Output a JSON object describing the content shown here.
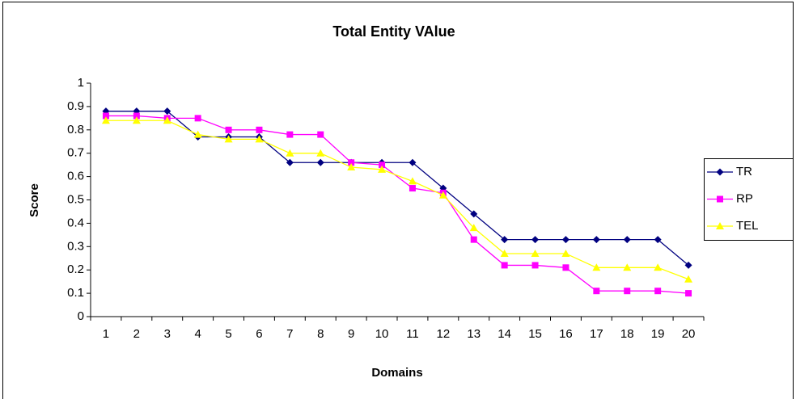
{
  "chart_data": {
    "type": "line",
    "title": "Total Entity VAlue",
    "xlabel": "Domains",
    "ylabel": "Score",
    "categories": [
      1,
      2,
      3,
      4,
      5,
      6,
      7,
      8,
      9,
      10,
      11,
      12,
      13,
      14,
      15,
      16,
      17,
      18,
      19,
      20
    ],
    "series": [
      {
        "name": "TR",
        "color": "#000080",
        "marker": "diamond",
        "values": [
          0.88,
          0.88,
          0.88,
          0.77,
          0.77,
          0.77,
          0.66,
          0.66,
          0.66,
          0.66,
          0.66,
          0.55,
          0.44,
          0.33,
          0.33,
          0.33,
          0.33,
          0.33,
          0.33,
          0.22
        ]
      },
      {
        "name": "RP",
        "color": "#ff00ff",
        "marker": "square",
        "values": [
          0.86,
          0.86,
          0.85,
          0.85,
          0.8,
          0.8,
          0.78,
          0.78,
          0.66,
          0.65,
          0.55,
          0.53,
          0.33,
          0.22,
          0.22,
          0.21,
          0.11,
          0.11,
          0.11,
          0.1
        ]
      },
      {
        "name": "TEL",
        "color": "#ffff00",
        "marker": "triangle",
        "values": [
          0.84,
          0.84,
          0.84,
          0.78,
          0.76,
          0.76,
          0.7,
          0.7,
          0.64,
          0.63,
          0.58,
          0.52,
          0.38,
          0.27,
          0.27,
          0.27,
          0.21,
          0.21,
          0.21,
          0.16
        ]
      }
    ],
    "ylim": [
      0,
      1
    ],
    "yticks": [
      0,
      0.1,
      0.2,
      0.3,
      0.4,
      0.5,
      0.6,
      0.7,
      0.8,
      0.9,
      1
    ],
    "grid": false,
    "legend": "right"
  }
}
